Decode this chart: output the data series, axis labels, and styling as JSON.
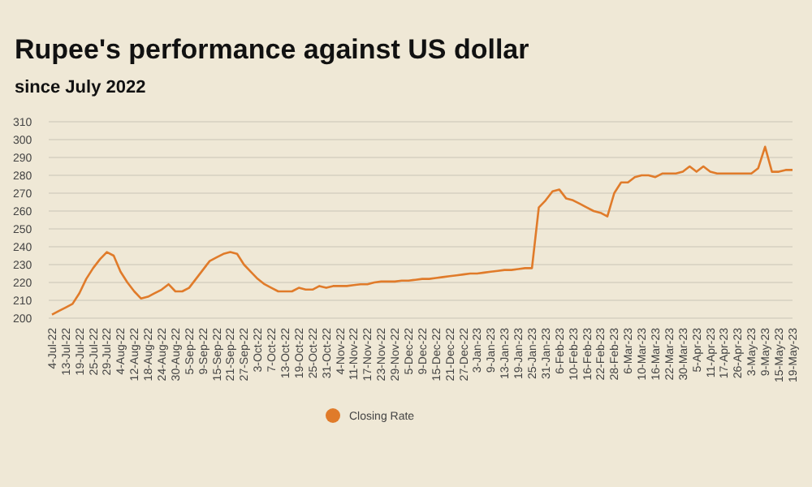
{
  "chart_data": {
    "type": "line",
    "title": "Rupee's performance against US dollar",
    "subtitle": "since July 2022",
    "categories": [
      "4-Jul-22",
      null,
      "13-Jul-22",
      null,
      "19-Jul-22",
      null,
      "25-Jul-22",
      null,
      "29-Jul-22",
      null,
      "4-Aug-22",
      null,
      "12-Aug-22",
      null,
      "18-Aug-22",
      null,
      "24-Aug-22",
      null,
      "30-Aug-22",
      null,
      "5-Sep-22",
      null,
      "9-Sep-22",
      null,
      "15-Sep-22",
      null,
      "21-Sep-22",
      null,
      "27-Sep-22",
      null,
      "3-Oct-22",
      null,
      "7-Oct-22",
      null,
      "13-Oct-22",
      null,
      "19-Oct-22",
      null,
      "25-Oct-22",
      null,
      "31-Oct-22",
      null,
      "4-Nov-22",
      null,
      "11-Nov-22",
      null,
      "17-Nov-22",
      null,
      "23-Nov-22",
      null,
      "29-Nov-22",
      null,
      "5-Dec-22",
      null,
      "9-Dec-22",
      null,
      "15-Dec-22",
      null,
      "21-Dec-22",
      null,
      "27-Dec-22",
      null,
      "3-Jan-23",
      null,
      "9-Jan-23",
      null,
      "13-Jan-23",
      null,
      "19-Jan-23",
      null,
      "25-Jan-23",
      null,
      "31-Jan-23",
      null,
      "6-Feb-23",
      null,
      "10-Feb-23",
      null,
      "16-Feb-23",
      null,
      "22-Feb-23",
      null,
      "28-Feb-23",
      null,
      "6-Mar-23",
      null,
      "10-Mar-23",
      null,
      "16-Mar-23",
      null,
      "22-Mar-23",
      null,
      "30-Mar-23",
      null,
      "5-Apr-23",
      null,
      "11-Apr-23",
      null,
      "17-Apr-23",
      null,
      "26-Apr-23",
      null,
      "3-May-23",
      null,
      "9-May-23",
      null,
      "15-May-23",
      null,
      "19-May-23"
    ],
    "series": [
      {
        "name": "Closing Rate",
        "color": "#e07b2a",
        "values": [
          202,
          204,
          206,
          208,
          214,
          222,
          228,
          233,
          237,
          235,
          226,
          220,
          215,
          211,
          212,
          214,
          216,
          219,
          215,
          215,
          217,
          222,
          227,
          232,
          234,
          236,
          237,
          236,
          230,
          226,
          222,
          219,
          217,
          215,
          215,
          215,
          217,
          216,
          216,
          218,
          217,
          218,
          218,
          218,
          218.5,
          219,
          219,
          220,
          220.5,
          220.5,
          220.5,
          221,
          221,
          221.5,
          222,
          222,
          222.5,
          223,
          223.5,
          224,
          224.5,
          225,
          225,
          225.5,
          226,
          226.5,
          227,
          227,
          227.5,
          228,
          228,
          262,
          266,
          271,
          272,
          267,
          266,
          264,
          262,
          260,
          259,
          257,
          270,
          276,
          276,
          279,
          280,
          280,
          279,
          281,
          281,
          281,
          282,
          285,
          282,
          285,
          282,
          281,
          281,
          281,
          281,
          281,
          281,
          284,
          296,
          282,
          282,
          283,
          283
        ]
      }
    ],
    "ylim": [
      200,
      310
    ],
    "yticks": [
      200,
      210,
      220,
      230,
      240,
      250,
      260,
      270,
      280,
      290,
      300,
      310
    ],
    "grid": "y",
    "legend": "bottom",
    "marker": "none"
  }
}
